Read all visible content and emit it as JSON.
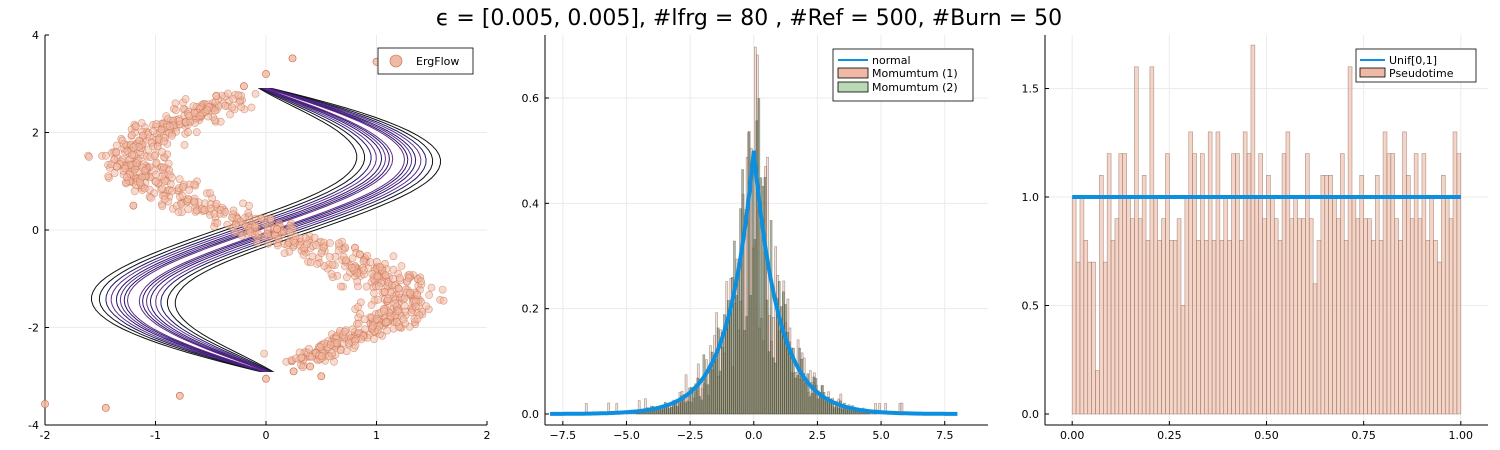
{
  "figure": {
    "suptitle": "ϵ = [0.005, 0.005], #lfrg = 80 , #Ref = 500, #Burn = 50"
  },
  "colors": {
    "orange_fill": "#f0b9a5",
    "orange_edge": "#c8683f",
    "green_fill": "#b9d8b4",
    "blue_line": "#0d8fe0",
    "contour": "#1a1a6e",
    "grid": "#ebebeb"
  },
  "chart_data": [
    {
      "type": "scatter",
      "title": "",
      "xlabel": "",
      "ylabel": "",
      "xlim": [
        -2,
        2
      ],
      "ylim": [
        -4,
        4
      ],
      "x_ticks": [
        "-2",
        "-1",
        "0",
        "1",
        "2"
      ],
      "y_ticks": [
        "-4",
        "-2",
        "0",
        "2",
        "4"
      ],
      "grid": true,
      "legend_position": "top-right",
      "series": [
        {
          "name": "ErgFlow",
          "kind": "scatter",
          "description_points": [
            [
              -2.0,
              -3.57
            ],
            [
              -1.45,
              -3.65
            ],
            [
              -0.78,
              -3.4
            ],
            [
              0.0,
              -3.05
            ],
            [
              0.25,
              -2.9
            ],
            [
              0.0,
              3.2
            ],
            [
              0.24,
              3.52
            ],
            [
              1.0,
              3.45
            ],
            [
              -0.2,
              2.95
            ],
            [
              -0.45,
              2.75
            ],
            [
              -1.35,
              1.3
            ],
            [
              -1.2,
              0.5
            ],
            [
              0.1,
              0.02
            ],
            [
              0.85,
              -0.5
            ],
            [
              1.2,
              -1.2
            ],
            [
              0.4,
              -2.8
            ],
            [
              0.5,
              -3.0
            ]
          ]
        },
        {
          "name": "",
          "kind": "contour"
        }
      ]
    },
    {
      "type": "bar",
      "title": "",
      "xlabel": "",
      "ylabel": "",
      "xlim": [
        -8.2,
        9.2
      ],
      "ylim": [
        0,
        0.72
      ],
      "x_ticks": [
        "−7.5",
        "−5.0",
        "−2.5",
        "0.0",
        "2.5",
        "5.0",
        "7.5"
      ],
      "y_ticks": [
        "0.0",
        "0.2",
        "0.4",
        "0.6"
      ],
      "grid": true,
      "legend_position": "top-right",
      "series": [
        {
          "name": "normal",
          "kind": "line",
          "x_range": [
            -8,
            8
          ],
          "peak": 0.5
        },
        {
          "name": "Momumtum (1)",
          "kind": "histogram",
          "x_range": [
            -7.5,
            8.5
          ],
          "peak_approx": 0.73
        },
        {
          "name": "Momumtum (2)",
          "kind": "histogram",
          "x_range": [
            -6,
            6
          ],
          "peak_approx": 0.65
        }
      ]
    },
    {
      "type": "bar",
      "title": "",
      "xlabel": "",
      "ylabel": "",
      "xlim": [
        -0.07,
        1.07
      ],
      "ylim": [
        -0.05,
        1.75
      ],
      "x_ticks": [
        "0.00",
        "0.25",
        "0.50",
        "0.75",
        "1.00"
      ],
      "y_ticks": [
        "0.0",
        "0.5",
        "1.0",
        "1.5"
      ],
      "grid": true,
      "legend_position": "top-right",
      "series": [
        {
          "name": "Unif[0,1]",
          "kind": "line",
          "x": [
            0,
            1
          ],
          "y": [
            1.0,
            1.0
          ]
        },
        {
          "name": "Pseudotime",
          "kind": "histogram",
          "bin_width": 0.01,
          "values": [
            1.0,
            0.7,
            1.0,
            0.8,
            0.7,
            0.7,
            0.2,
            1.1,
            0.7,
            1.2,
            0.8,
            0.9,
            1.2,
            1.2,
            1.0,
            0.9,
            1.6,
            0.9,
            1.1,
            0.8,
            1.6,
            1.0,
            0.8,
            0.9,
            1.2,
            0.8,
            0.8,
            0.9,
            0.5,
            1.0,
            1.3,
            1.2,
            0.8,
            1.2,
            0.8,
            1.3,
            0.8,
            1.3,
            0.8,
            1.0,
            0.8,
            1.2,
            1.2,
            0.8,
            1.3,
            1.2,
            1.7,
            1.0,
            1.2,
            0.9,
            1.1,
            1.0,
            0.9,
            0.8,
            1.2,
            1.3,
            0.9,
            1.0,
            0.9,
            0.9,
            1.2,
            0.9,
            0.6,
            0.8,
            1.1,
            1.1,
            1.1,
            1.0,
            0.9,
            1.2,
            0.8,
            1.6,
            1.0,
            0.9,
            1.1,
            0.9,
            0.9,
            0.8,
            1.1,
            0.8,
            1.3,
            1.2,
            1.2,
            0.9,
            0.8,
            1.3,
            1.1,
            0.9,
            1.2,
            0.9,
            1.2,
            0.8,
            1.0,
            0.8,
            0.7,
            1.1,
            1.0,
            0.9,
            1.3,
            1.2
          ]
        }
      ]
    }
  ]
}
